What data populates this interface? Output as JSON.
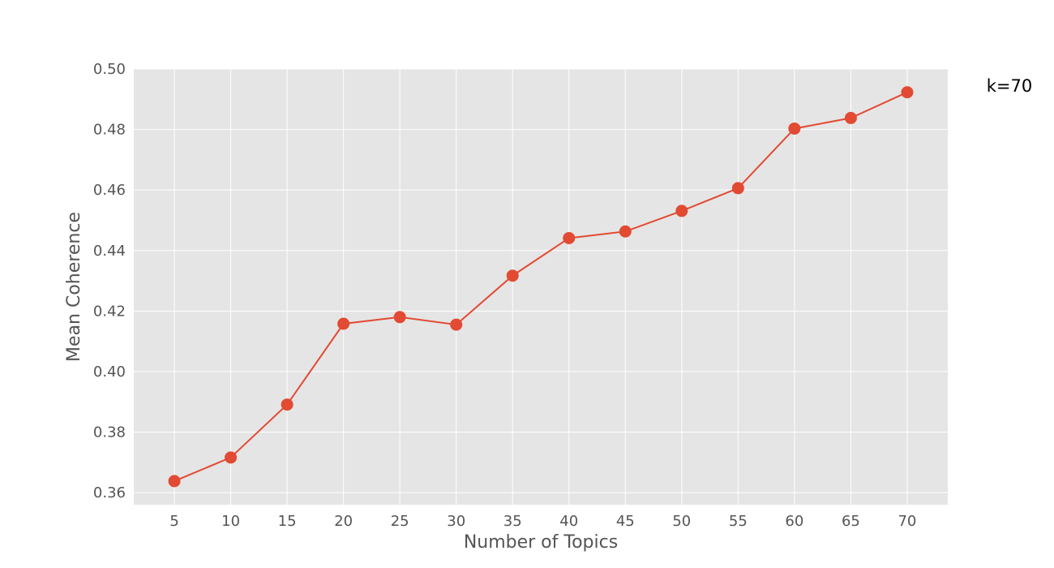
{
  "chart_data": {
    "type": "line",
    "x": [
      5,
      10,
      15,
      20,
      25,
      30,
      35,
      40,
      45,
      50,
      55,
      60,
      65,
      70
    ],
    "series": [
      {
        "values": [
          0.3638,
          0.3716,
          0.3891,
          0.4158,
          0.418,
          0.4155,
          0.4317,
          0.4441,
          0.4463,
          0.4531,
          0.4606,
          0.4803,
          0.4838,
          0.4923
        ],
        "color": "#E24A33",
        "marker": "circle"
      }
    ],
    "xlabel": "Number of Topics",
    "ylabel": "Mean Coherence",
    "xticks": [
      "5",
      "10",
      "15",
      "20",
      "25",
      "30",
      "35",
      "40",
      "45",
      "50",
      "55",
      "60",
      "65",
      "70"
    ],
    "yticks": [
      "0.36",
      "0.38",
      "0.40",
      "0.42",
      "0.44",
      "0.46",
      "0.48",
      "0.50"
    ],
    "ytick_values": [
      0.36,
      0.38,
      0.4,
      0.42,
      0.44,
      0.46,
      0.48,
      0.5
    ],
    "xlim": [
      1.4,
      73.6
    ],
    "ylim": [
      0.356,
      0.5
    ],
    "grid": true,
    "background": "#E5E5E5",
    "annotation": "k=70"
  }
}
